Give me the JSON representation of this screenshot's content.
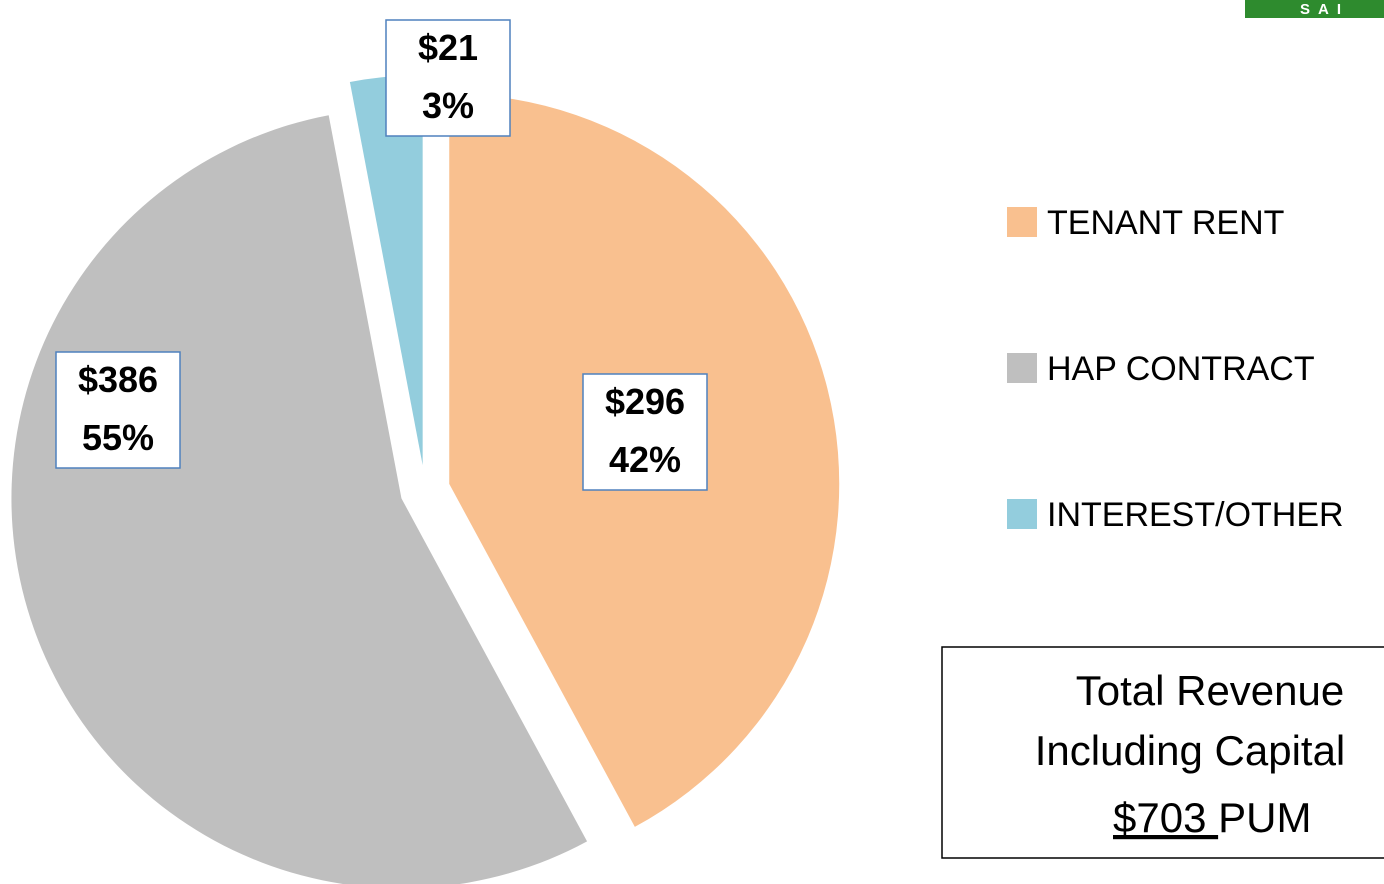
{
  "chart_data": {
    "type": "pie",
    "categories": [
      "TENANT RENT",
      "HAP CONTRACT",
      "INTEREST/OTHER"
    ],
    "values": [
      296,
      386,
      21
    ],
    "value_labels": [
      "$296",
      "$386",
      "$21"
    ],
    "percent_labels": [
      "42%",
      "55%",
      "3%"
    ],
    "colors": [
      "#f9c08f",
      "#bfbfbf",
      "#93cddd"
    ],
    "legend": "right"
  },
  "total_box": {
    "line1": "Total Revenue",
    "line2": "Including Capital",
    "amount": "$703 ",
    "unit": "PUM"
  },
  "logo_text": "SAI"
}
